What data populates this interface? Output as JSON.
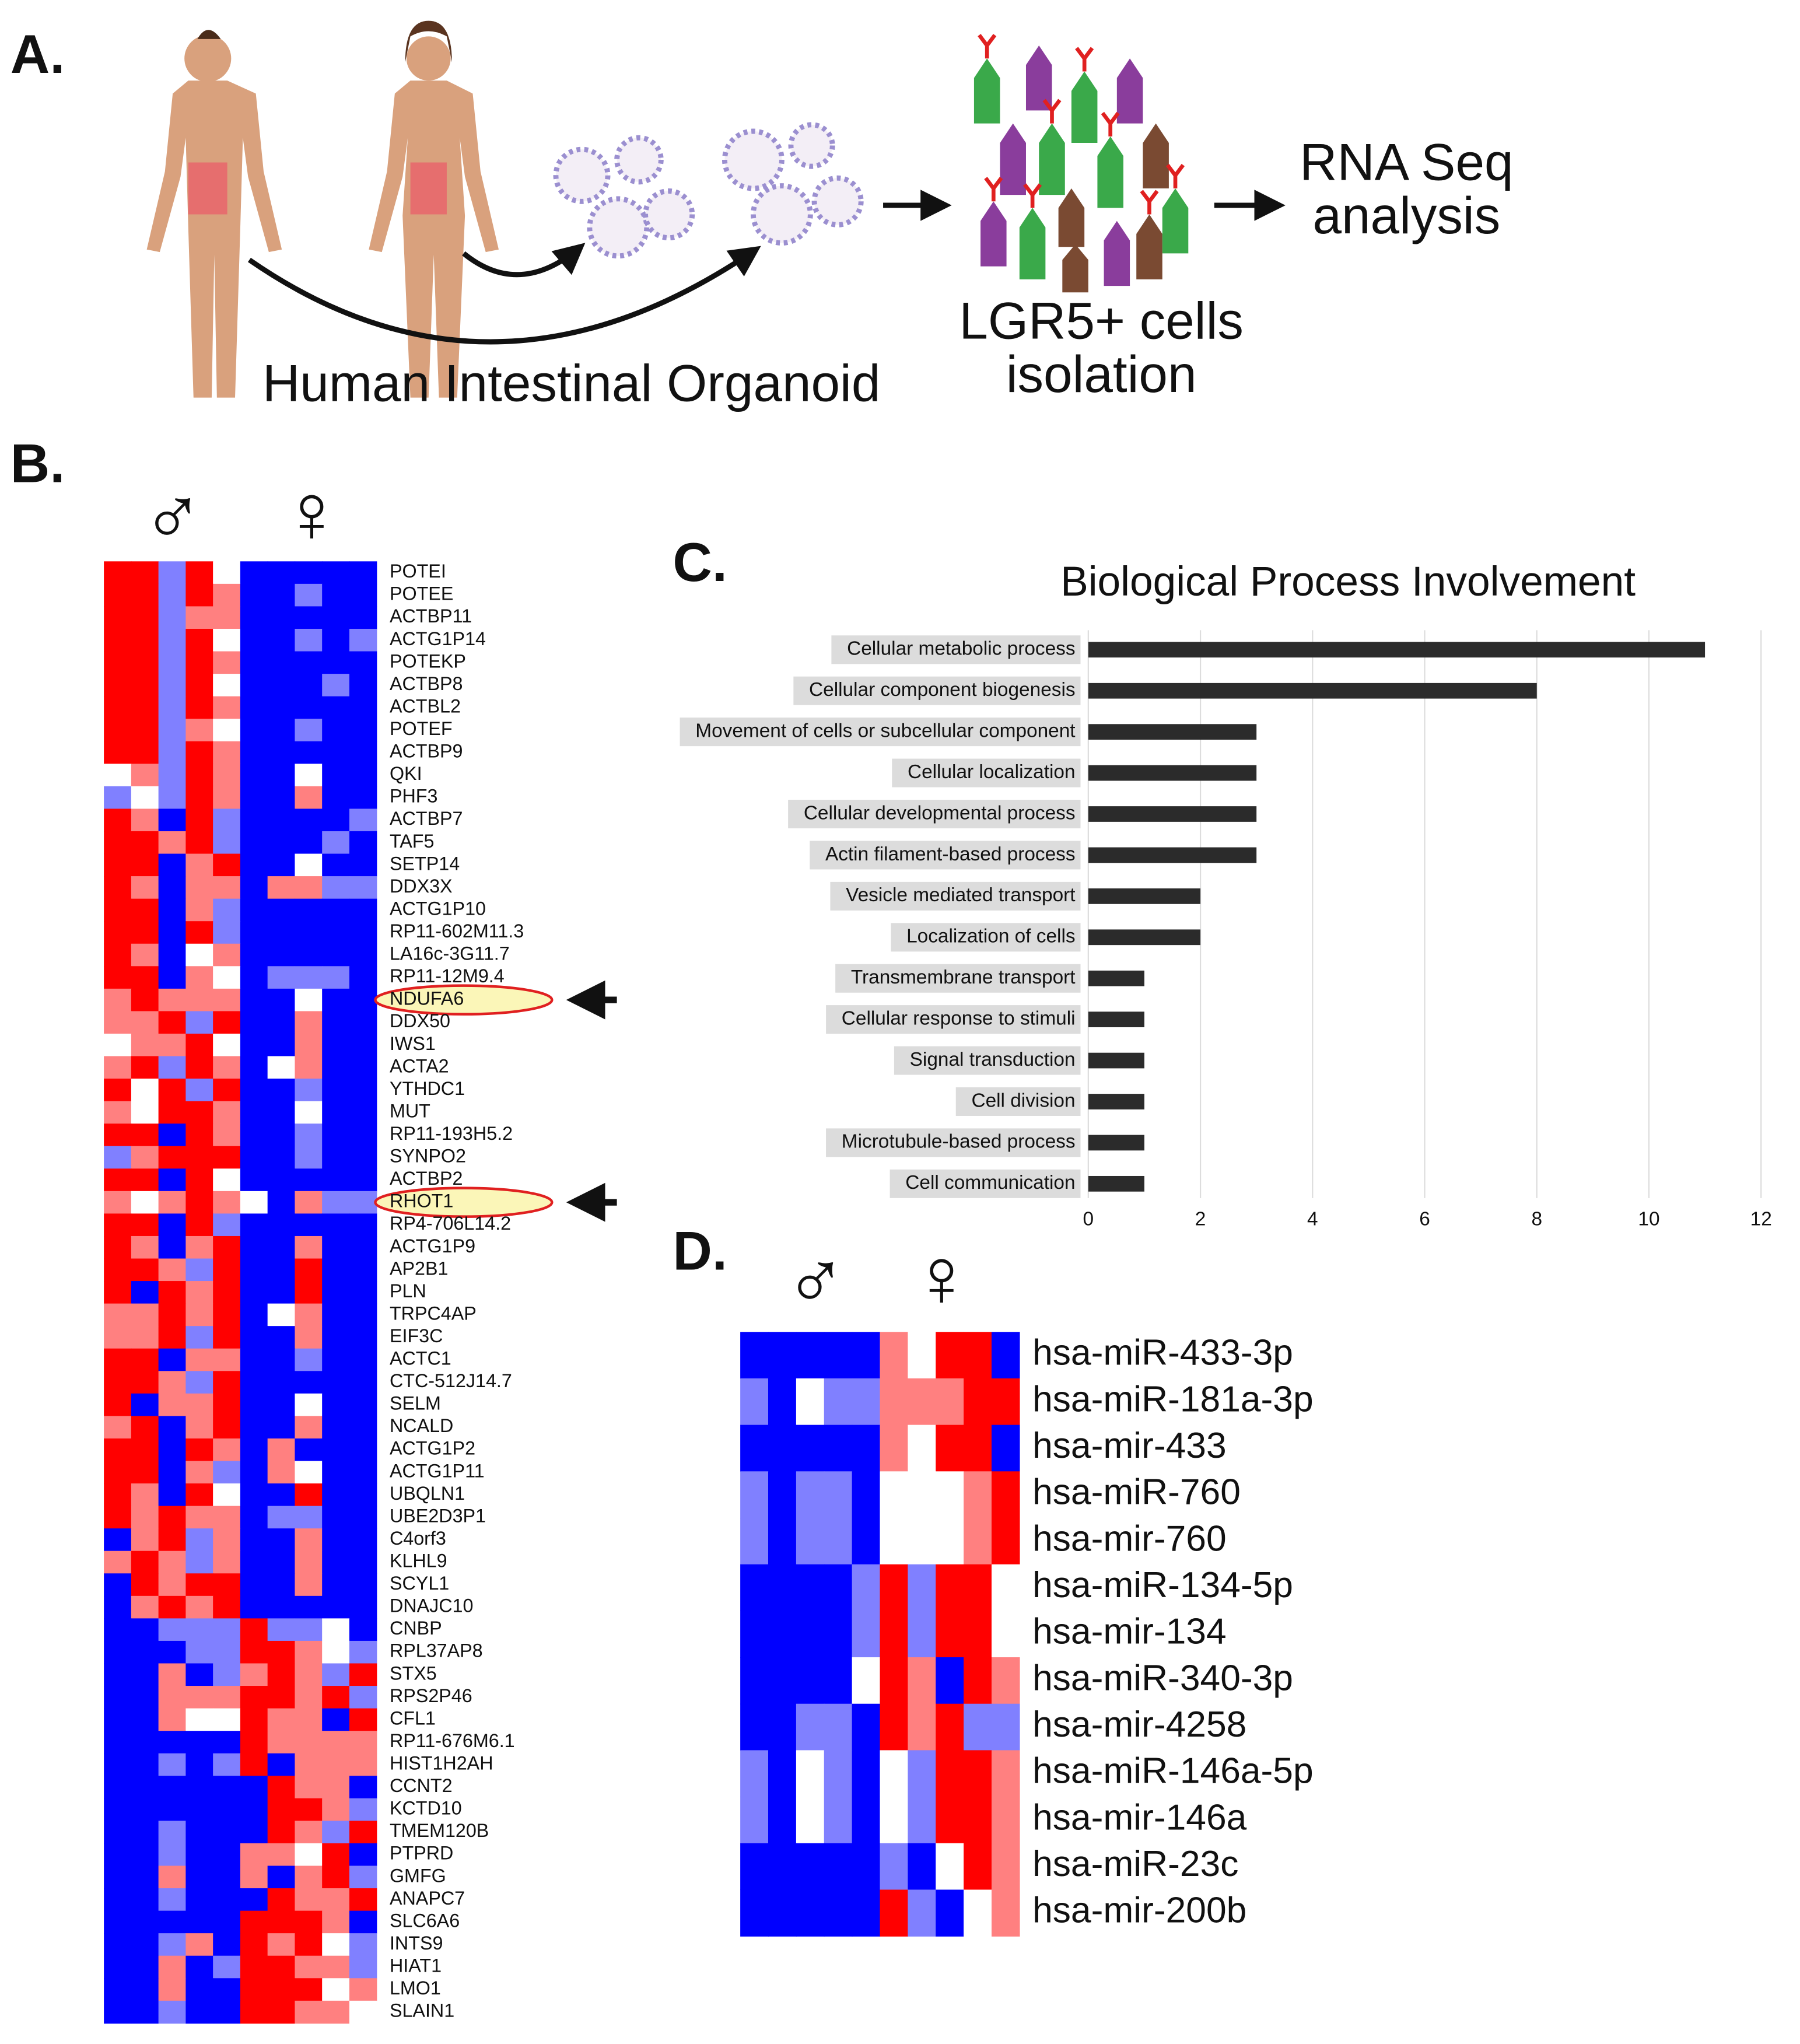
{
  "panel_a": {
    "label": "A.",
    "organoid_caption": "Human Intestinal Organoid",
    "isolation_caption": [
      "LGR5+ cells",
      "isolation"
    ],
    "analysis_caption": [
      "RNA Seq",
      "analysis"
    ]
  },
  "panel_b": {
    "label": "B.",
    "male_symbol": "♂",
    "female_symbol": "♀",
    "genes": [
      "POTEI",
      "POTEE",
      "ACTBP11",
      "ACTG1P14",
      "POTEKP",
      "ACTBP8",
      "ACTBL2",
      "POTEF",
      "ACTBP9",
      "QKI",
      "PHF3",
      "ACTBP7",
      "TAF5",
      "SETP14",
      "DDX3X",
      "ACTG1P10",
      "RP11-602M11.3",
      "LA16c-3G11.7",
      "RP11-12M9.4",
      "NDUFA6",
      "DDX50",
      "IWS1",
      "ACTA2",
      "YTHDC1",
      "MUT",
      "RP11-193H5.2",
      "SYNPO2",
      "ACTBP2",
      "RHOT1",
      "RP4-706L14.2",
      "ACTG1P9",
      "AP2B1",
      "PLN",
      "TRPC4AP",
      "EIF3C",
      "ACTC1",
      "CTC-512J14.7",
      "SELM",
      "NCALD",
      "ACTG1P2",
      "ACTG1P11",
      "UBQLN1",
      "UBE2D3P1",
      "C4orf3",
      "KLHL9",
      "SCYL1",
      "DNAJC10",
      "CNBP",
      "RPL37AP8",
      "STX5",
      "RPS2P46",
      "CFL1",
      "RP11-676M6.1",
      "HIST1H2AH",
      "CCNT2",
      "KCTD10",
      "TMEM120B",
      "PTPRD",
      "GMFG",
      "ANAPC7",
      "SLC6A6",
      "INTS9",
      "HIAT1",
      "LMO1",
      "SLAIN1"
    ],
    "values": [
      [
        2,
        2,
        -1,
        2,
        0,
        -2,
        -2,
        -2,
        -2,
        -2
      ],
      [
        2,
        2,
        -1,
        2,
        1,
        -2,
        -2,
        -1,
        -2,
        -2
      ],
      [
        2,
        2,
        -1,
        1,
        1,
        -2,
        -2,
        -2,
        -2,
        -2
      ],
      [
        2,
        2,
        -1,
        2,
        0,
        -2,
        -2,
        -1,
        -2,
        -1
      ],
      [
        2,
        2,
        -1,
        2,
        1,
        -2,
        -2,
        -2,
        -2,
        -2
      ],
      [
        2,
        2,
        -1,
        2,
        0,
        -2,
        -2,
        -2,
        -1,
        -2
      ],
      [
        2,
        2,
        -1,
        2,
        1,
        -2,
        -2,
        -2,
        -2,
        -2
      ],
      [
        2,
        2,
        -1,
        1,
        0,
        -2,
        -2,
        -1,
        -2,
        -2
      ],
      [
        2,
        2,
        -1,
        2,
        1,
        -2,
        -2,
        -2,
        -2,
        -2
      ],
      [
        0,
        1,
        -1,
        2,
        1,
        -2,
        -2,
        0,
        -2,
        -2
      ],
      [
        -1,
        0,
        -1,
        2,
        1,
        -2,
        -2,
        1,
        -2,
        -2
      ],
      [
        2,
        1,
        -2,
        2,
        -1,
        -2,
        -2,
        -2,
        -2,
        -1
      ],
      [
        2,
        2,
        1,
        2,
        -1,
        -2,
        -2,
        -2,
        -1,
        -2
      ],
      [
        2,
        2,
        -2,
        1,
        2,
        -2,
        -2,
        0,
        -2,
        -2
      ],
      [
        2,
        1,
        -2,
        1,
        1,
        -2,
        1,
        1,
        -1,
        -1
      ],
      [
        2,
        2,
        -2,
        1,
        -1,
        -2,
        -2,
        -2,
        -2,
        -2
      ],
      [
        2,
        2,
        -2,
        2,
        -1,
        -2,
        -2,
        -2,
        -2,
        -2
      ],
      [
        2,
        1,
        -2,
        0,
        1,
        -2,
        -2,
        -2,
        -2,
        -2
      ],
      [
        2,
        2,
        -2,
        1,
        0,
        -2,
        -1,
        -1,
        -1,
        -2
      ],
      [
        1,
        2,
        1,
        1,
        1,
        -2,
        -2,
        0,
        -2,
        -2
      ],
      [
        1,
        1,
        2,
        -1,
        2,
        -2,
        -2,
        1,
        -2,
        -2
      ],
      [
        0,
        1,
        1,
        2,
        0,
        -2,
        -2,
        1,
        -2,
        -2
      ],
      [
        1,
        2,
        -1,
        2,
        1,
        -2,
        0,
        1,
        -2,
        -2
      ],
      [
        2,
        0,
        2,
        -1,
        2,
        -2,
        -2,
        -1,
        -2,
        -2
      ],
      [
        1,
        0,
        2,
        2,
        1,
        -2,
        -2,
        0,
        -2,
        -2
      ],
      [
        2,
        2,
        -2,
        2,
        1,
        -2,
        -2,
        -1,
        -2,
        -2
      ],
      [
        -1,
        1,
        2,
        2,
        2,
        -2,
        -2,
        -1,
        -2,
        -2
      ],
      [
        2,
        2,
        -2,
        2,
        0,
        -2,
        -2,
        -2,
        -2,
        -2
      ],
      [
        1,
        0,
        1,
        2,
        1,
        0,
        -2,
        1,
        -1,
        -1
      ],
      [
        2,
        2,
        -2,
        2,
        -1,
        -2,
        -2,
        -2,
        -2,
        -2
      ],
      [
        2,
        1,
        -2,
        1,
        2,
        -2,
        -2,
        1,
        -2,
        -2
      ],
      [
        2,
        2,
        1,
        -1,
        2,
        -2,
        -2,
        2,
        -2,
        -2
      ],
      [
        2,
        -2,
        2,
        1,
        2,
        -2,
        -2,
        2,
        -2,
        -2
      ],
      [
        1,
        1,
        2,
        1,
        2,
        -2,
        0,
        1,
        -2,
        -2
      ],
      [
        1,
        1,
        2,
        -1,
        2,
        -2,
        -2,
        1,
        -2,
        -2
      ],
      [
        2,
        2,
        -2,
        1,
        1,
        -2,
        -2,
        -1,
        -2,
        -2
      ],
      [
        2,
        2,
        1,
        -1,
        2,
        -2,
        -2,
        -2,
        -2,
        -2
      ],
      [
        2,
        -2,
        1,
        1,
        2,
        -2,
        -2,
        0,
        -2,
        -2
      ],
      [
        1,
        2,
        -2,
        1,
        2,
        -2,
        -2,
        1,
        -2,
        -2
      ],
      [
        2,
        2,
        -2,
        2,
        1,
        -2,
        1,
        -2,
        -2,
        -2
      ],
      [
        2,
        2,
        -2,
        1,
        -1,
        -2,
        1,
        0,
        -2,
        -2
      ],
      [
        2,
        1,
        -2,
        2,
        0,
        -2,
        -2,
        2,
        -2,
        -2
      ],
      [
        2,
        1,
        2,
        1,
        1,
        -2,
        -1,
        -1,
        -2,
        -2
      ],
      [
        -2,
        1,
        2,
        -1,
        1,
        -2,
        -2,
        1,
        -2,
        -2
      ],
      [
        1,
        2,
        1,
        -1,
        1,
        -2,
        -2,
        1,
        -2,
        -2
      ],
      [
        -2,
        2,
        1,
        2,
        2,
        -2,
        -2,
        1,
        -2,
        -2
      ],
      [
        -2,
        1,
        2,
        1,
        2,
        -2,
        -2,
        -2,
        -2,
        -2
      ],
      [
        -2,
        -2,
        -1,
        -1,
        -1,
        2,
        -1,
        -1,
        0,
        -2
      ],
      [
        -2,
        -2,
        -2,
        -1,
        -1,
        2,
        2,
        1,
        0,
        -1
      ],
      [
        -2,
        -2,
        1,
        -2,
        -1,
        1,
        2,
        1,
        -1,
        2
      ],
      [
        -2,
        -2,
        1,
        1,
        1,
        2,
        2,
        1,
        2,
        -1
      ],
      [
        -2,
        -2,
        1,
        0,
        0,
        2,
        1,
        1,
        -2,
        2
      ],
      [
        -2,
        -2,
        -2,
        -2,
        -2,
        2,
        1,
        1,
        1,
        1
      ],
      [
        -2,
        -2,
        -1,
        -2,
        -1,
        2,
        -2,
        1,
        1,
        1
      ],
      [
        -2,
        -2,
        -2,
        -2,
        -2,
        -2,
        2,
        1,
        1,
        -2
      ],
      [
        -2,
        -2,
        -2,
        -2,
        -2,
        -2,
        2,
        2,
        1,
        -1
      ],
      [
        -2,
        -2,
        -1,
        -2,
        -2,
        -2,
        2,
        1,
        -1,
        2
      ],
      [
        -2,
        -2,
        -1,
        -2,
        -2,
        1,
        1,
        0,
        2,
        -2
      ],
      [
        -2,
        -2,
        1,
        -2,
        -2,
        1,
        -2,
        1,
        2,
        -1
      ],
      [
        -2,
        -2,
        -1,
        -2,
        -2,
        -2,
        2,
        1,
        1,
        2
      ],
      [
        -2,
        -2,
        -2,
        -2,
        -2,
        2,
        2,
        2,
        1,
        -2
      ],
      [
        -2,
        -2,
        -1,
        1,
        -2,
        2,
        1,
        2,
        0,
        -1
      ],
      [
        -2,
        -2,
        1,
        -2,
        -1,
        2,
        2,
        1,
        1,
        -1
      ],
      [
        -2,
        -2,
        1,
        -2,
        -2,
        2,
        2,
        2,
        0,
        1
      ],
      [
        -2,
        -2,
        -1,
        -2,
        -2,
        2,
        2,
        1,
        1,
        0
      ]
    ]
  },
  "chart_data": {
    "type": "bar",
    "label": "C.",
    "title": "Biological Process Involvement",
    "categories": [
      "Cellular metabolic process",
      "Cellular component biogenesis",
      "Movement of cells or subcellular component",
      "Cellular localization",
      "Cellular developmental process",
      "Actin filament-based process",
      "Vesicle mediated transport",
      "Localization of cells",
      "Transmembrane transport",
      "Cellular response to stimuli",
      "Signal transduction",
      "Cell division",
      "Microtubule-based process",
      "Cell communication"
    ],
    "values": [
      11,
      8,
      3,
      3,
      3,
      3,
      2,
      2,
      1,
      1,
      1,
      1,
      1,
      1
    ],
    "color": "#2b2b2b",
    "xlim": [
      0,
      12
    ],
    "xticks": [
      0,
      2,
      4,
      6,
      8,
      10,
      12
    ],
    "grid": true
  },
  "panel_d": {
    "label": "D.",
    "male_symbol": "♂",
    "female_symbol": "♀",
    "mirnas": [
      "hsa-miR-433-3p",
      "hsa-miR-181a-3p",
      "hsa-mir-433",
      "hsa-miR-760",
      "hsa-mir-760",
      "hsa-miR-134-5p",
      "hsa-mir-134",
      "hsa-miR-340-3p",
      "hsa-mir-4258",
      "hsa-miR-146a-5p",
      "hsa-mir-146a",
      "hsa-miR-23c",
      "hsa-mir-200b"
    ],
    "values": [
      [
        -2,
        -2,
        -2,
        -2,
        -2,
        1,
        0,
        2,
        2,
        -2
      ],
      [
        -1,
        -2,
        0,
        -1,
        -1,
        1,
        1,
        1,
        2,
        2
      ],
      [
        -2,
        -2,
        -2,
        -2,
        -2,
        1,
        0,
        2,
        2,
        -2
      ],
      [
        -1,
        -2,
        -1,
        -1,
        -2,
        0,
        0,
        0,
        1,
        2
      ],
      [
        -1,
        -2,
        -1,
        -1,
        -2,
        0,
        0,
        0,
        1,
        2
      ],
      [
        -2,
        -2,
        -2,
        -2,
        -1,
        2,
        -1,
        2,
        2,
        0
      ],
      [
        -2,
        -2,
        -2,
        -2,
        -1,
        2,
        -1,
        2,
        2,
        0
      ],
      [
        -2,
        -2,
        -2,
        -2,
        0,
        2,
        1,
        -2,
        2,
        1
      ],
      [
        -2,
        -2,
        -1,
        -1,
        -2,
        2,
        1,
        2,
        -1,
        -1
      ],
      [
        -1,
        -2,
        0,
        -1,
        -2,
        0,
        -1,
        2,
        2,
        1
      ],
      [
        -1,
        -2,
        0,
        -1,
        -2,
        0,
        -1,
        2,
        2,
        1
      ],
      [
        -2,
        -2,
        -2,
        -2,
        -2,
        -1,
        -2,
        0,
        2,
        1
      ],
      [
        -2,
        -2,
        -2,
        -2,
        -2,
        2,
        -1,
        -2,
        0,
        1
      ]
    ]
  }
}
